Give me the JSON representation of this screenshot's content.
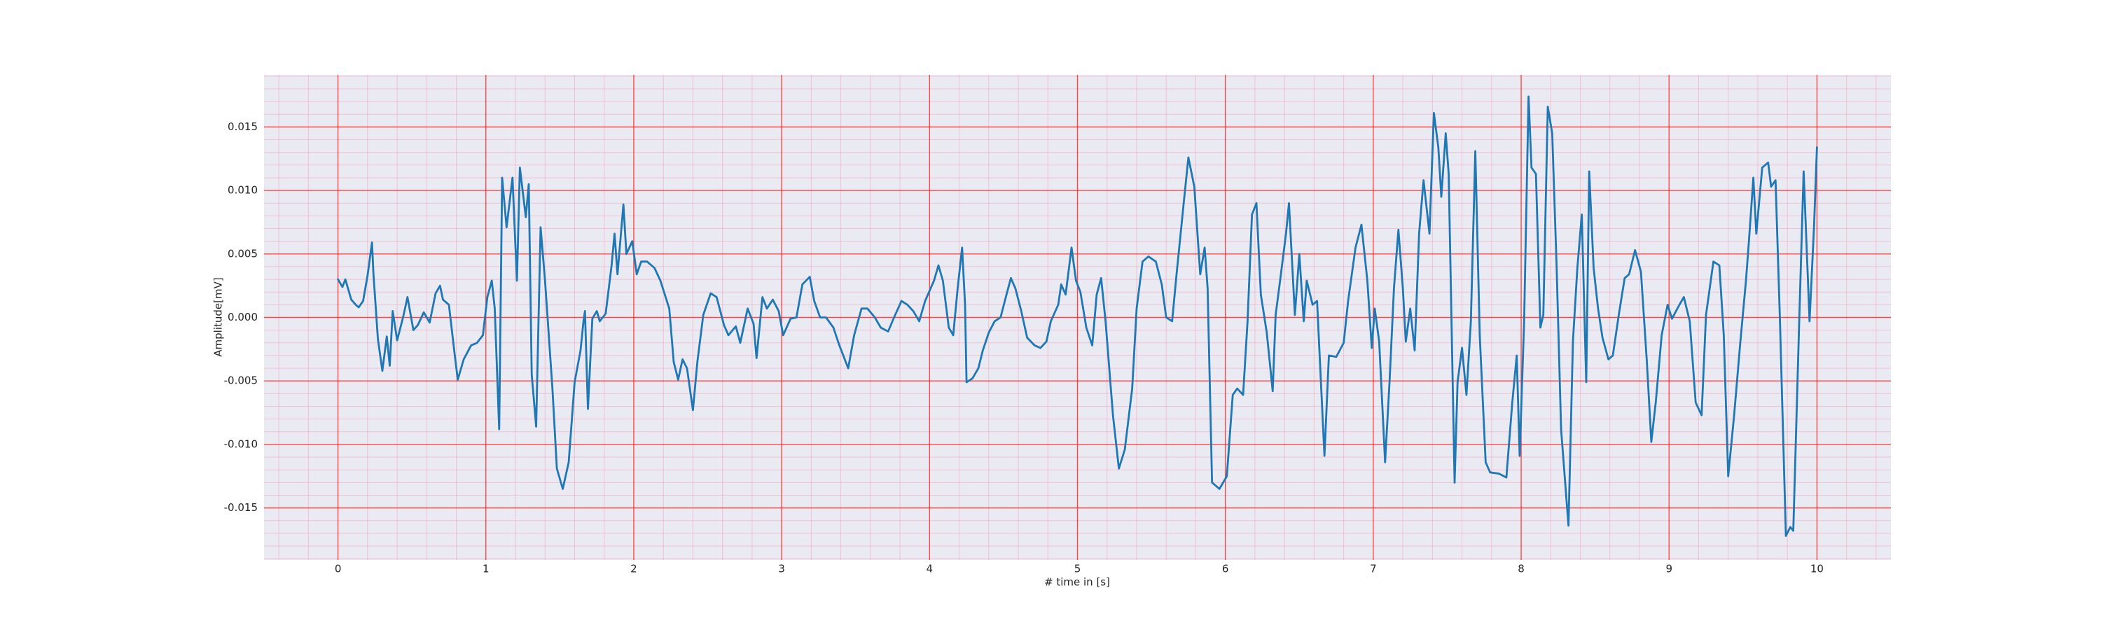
{
  "chart_data": {
    "type": "line",
    "xlabel": "# time in [s]",
    "ylabel": "Amplitude[mV]",
    "color": "#1f77b4",
    "grid": true,
    "minor_grid": true,
    "grid_color": "#ff2020",
    "minor_grid_color": "#f4a0b8",
    "background": "#eaeaf2",
    "xlim": [
      -0.5,
      10.5
    ],
    "ylim": [
      -0.0191,
      0.0191
    ],
    "xticks": [
      0,
      1,
      2,
      3,
      4,
      5,
      6,
      7,
      8,
      9,
      10
    ],
    "yticks": [
      {
        "value": -0.015,
        "label": "-0.015"
      },
      {
        "value": -0.01,
        "label": "-0.010"
      },
      {
        "value": -0.005,
        "label": "-0.005"
      },
      {
        "value": 0,
        "label": "0.000"
      },
      {
        "value": 0.005,
        "label": "0.005"
      },
      {
        "value": 0.01,
        "label": "0.010"
      },
      {
        "value": 0.015,
        "label": "0.015"
      }
    ],
    "x": [
      0,
      0.03,
      0.05,
      0.09,
      0.12,
      0.14,
      0.17,
      0.2,
      0.23,
      0.24,
      0.27,
      0.3,
      0.33,
      0.35,
      0.37,
      0.4,
      0.44,
      0.47,
      0.51,
      0.54,
      0.58,
      0.62,
      0.66,
      0.69,
      0.71,
      0.75,
      0.79,
      0.81,
      0.85,
      0.9,
      0.94,
      0.98,
      1.01,
      1.04,
      1.06,
      1.09,
      1.11,
      1.14,
      1.18,
      1.21,
      1.23,
      1.27,
      1.29,
      1.31,
      1.34,
      1.37,
      1.4,
      1.45,
      1.48,
      1.52,
      1.56,
      1.6,
      1.64,
      1.66,
      1.67,
      1.69,
      1.72,
      1.75,
      1.77,
      1.81,
      1.85,
      1.87,
      1.89,
      1.93,
      1.95,
      1.99,
      2.02,
      2.05,
      2.09,
      2.14,
      2.18,
      2.24,
      2.27,
      2.3,
      2.33,
      2.36,
      2.4,
      2.43,
      2.47,
      2.52,
      2.56,
      2.61,
      2.64,
      2.69,
      2.72,
      2.77,
      2.81,
      2.83,
      2.87,
      2.9,
      2.94,
      2.98,
      3.01,
      3.06,
      3.1,
      3.14,
      3.19,
      3.22,
      3.26,
      3.3,
      3.35,
      3.39,
      3.45,
      3.49,
      3.54,
      3.58,
      3.63,
      3.67,
      3.72,
      3.76,
      3.81,
      3.85,
      3.89,
      3.93,
      3.97,
      4.03,
      4.06,
      4.09,
      4.13,
      4.16,
      4.19,
      4.22,
      4.24,
      4.25,
      4.29,
      4.33,
      4.36,
      4.4,
      4.44,
      4.48,
      4.52,
      4.55,
      4.58,
      4.62,
      4.66,
      4.71,
      4.75,
      4.79,
      4.82,
      4.87,
      4.89,
      4.92,
      4.96,
      4.99,
      5.02,
      5.06,
      5.1,
      5.13,
      5.16,
      5.19,
      5.24,
      5.28,
      5.32,
      5.37,
      5.4,
      5.44,
      5.48,
      5.53,
      5.57,
      5.6,
      5.64,
      5.67,
      5.72,
      5.75,
      5.79,
      5.83,
      5.86,
      5.88,
      5.91,
      5.96,
      6.01,
      6.05,
      6.08,
      6.12,
      6.15,
      6.18,
      6.21,
      6.24,
      6.28,
      6.32,
      6.34,
      6.37,
      6.41,
      6.43,
      6.47,
      6.5,
      6.53,
      6.55,
      6.59,
      6.62,
      6.67,
      6.7,
      6.75,
      6.8,
      6.83,
      6.88,
      6.92,
      6.96,
      6.99,
      7.01,
      7.04,
      7.08,
      7.11,
      7.14,
      7.17,
      7.2,
      7.22,
      7.25,
      7.28,
      7.31,
      7.34,
      7.38,
      7.41,
      7.44,
      7.46,
      7.49,
      7.51,
      7.55,
      7.57,
      7.6,
      7.63,
      7.66,
      7.69,
      7.72,
      7.76,
      7.79,
      7.85,
      7.9,
      7.94,
      7.97,
      7.99,
      8.02,
      8.05,
      8.07,
      8.1,
      8.13,
      8.15,
      8.18,
      8.21,
      8.24,
      8.27,
      8.32,
      8.35,
      8.38,
      8.41,
      8.44,
      8.46,
      8.49,
      8.52,
      8.55,
      8.59,
      8.62,
      8.66,
      8.7,
      8.73,
      8.77,
      8.81,
      8.85,
      8.88,
      8.91,
      8.95,
      8.99,
      9.02,
      9.07,
      9.1,
      9.14,
      9.18,
      9.22,
      9.25,
      9.3,
      9.34,
      9.37,
      9.4,
      9.44,
      9.48,
      9.52,
      9.54,
      9.57,
      9.59,
      9.63,
      9.67,
      9.69,
      9.72,
      9.75,
      9.79,
      9.82,
      9.84,
      9.88,
      9.91,
      9.95,
      9.98,
      10
    ],
    "values": [
      0.003,
      0.0024,
      0.003,
      0.0014,
      0.001,
      0.0008,
      0.0013,
      0.0033,
      0.0059,
      0.0034,
      -0.0017,
      -0.0042,
      -0.0015,
      -0.0038,
      0.0005,
      -0.0018,
      0,
      0.0016,
      -0.001,
      -0.0006,
      0.0004,
      -0.0004,
      0.0019,
      0.0025,
      0.0014,
      0.001,
      -0.003,
      -0.0049,
      -0.0033,
      -0.0022,
      -0.002,
      -0.0014,
      0.0016,
      0.0029,
      0.0007,
      -0.0088,
      0.011,
      0.0071,
      0.011,
      0.0029,
      0.0118,
      0.0079,
      0.0105,
      -0.0045,
      -0.0086,
      0.0071,
      0.0029,
      -0.0056,
      -0.0119,
      -0.0135,
      -0.0114,
      -0.0051,
      -0.0026,
      -0.0003,
      0.0005,
      -0.0072,
      -0.0001,
      0.0005,
      -0.0003,
      0.0003,
      0.0041,
      0.0066,
      0.0034,
      0.0089,
      0.005,
      0.006,
      0.0034,
      0.0044,
      0.0044,
      0.0039,
      0.0029,
      0.0007,
      -0.0035,
      -0.0049,
      -0.0033,
      -0.004,
      -0.0073,
      -0.0035,
      0.0002,
      0.0019,
      0.0016,
      -0.0006,
      -0.0014,
      -0.0007,
      -0.002,
      0.0007,
      -0.0005,
      -0.0032,
      0.0016,
      0.0007,
      0.0014,
      0.0005,
      -0.0014,
      -0.0001,
      0,
      0.0026,
      0.0032,
      0.0013,
      0,
      0,
      -0.0008,
      -0.0022,
      -0.004,
      -0.0014,
      0.0007,
      0.0007,
      0,
      -0.0008,
      -0.0011,
      0,
      0.0013,
      0.001,
      0.0005,
      -0.0003,
      0.0013,
      0.0029,
      0.0041,
      0.0029,
      -0.0008,
      -0.0014,
      0.0023,
      0.0055,
      0.001,
      -0.0051,
      -0.0048,
      -0.004,
      -0.0026,
      -0.0012,
      -0.0003,
      0,
      0.0018,
      0.0031,
      0.0023,
      0.0005,
      -0.0016,
      -0.0022,
      -0.0024,
      -0.0019,
      -0.0003,
      0.001,
      0.0026,
      0.0018,
      0.0055,
      0.0029,
      0.002,
      -0.0008,
      -0.0022,
      0.0018,
      0.0031,
      -0.0003,
      -0.0077,
      -0.0119,
      -0.0104,
      -0.0056,
      0.0007,
      0.0044,
      0.0048,
      0.0044,
      0.0026,
      0,
      -0.0003,
      0.0034,
      0.0092,
      0.0126,
      0.0103,
      0.0034,
      0.0055,
      0.0023,
      -0.013,
      -0.0135,
      -0.0125,
      -0.0061,
      -0.0056,
      -0.0061,
      -0.0003,
      0.0081,
      0.009,
      0.0018,
      -0.0012,
      -0.0058,
      0.0002,
      0.0029,
      0.0066,
      0.009,
      0.0002,
      0.005,
      -0.0003,
      0.0029,
      0.001,
      0.0013,
      -0.0109,
      -0.003,
      -0.0031,
      -0.002,
      0.0013,
      0.0055,
      0.0073,
      0.0029,
      -0.0024,
      0.0007,
      -0.0019,
      -0.0114,
      -0.0051,
      0.0023,
      0.0069,
      0.0023,
      -0.0019,
      0.0007,
      -0.0026,
      0.0066,
      0.0108,
      0.0066,
      0.0161,
      0.0134,
      0.0095,
      0.0145,
      0.0113,
      -0.013,
      -0.0051,
      -0.0024,
      -0.0061,
      -0.0003,
      0.0131,
      -0.0014,
      -0.0114,
      -0.0122,
      -0.0123,
      -0.0126,
      -0.0067,
      -0.003,
      -0.0109,
      -0.0003,
      0.0174,
      0.0118,
      0.0113,
      -0.0008,
      0.0002,
      0.0166,
      0.0145,
      0.0039,
      -0.0088,
      -0.0164,
      -0.0019,
      0.0039,
      0.0081,
      -0.0051,
      0.0115,
      0.0039,
      0.0007,
      -0.0016,
      -0.0033,
      -0.003,
      0.0002,
      0.0031,
      0.0034,
      0.0053,
      0.0036,
      -0.0035,
      -0.0098,
      -0.0067,
      -0.0014,
      0.001,
      -0.0001,
      0.001,
      0.0016,
      -0.0003,
      -0.0067,
      -0.0077,
      0.0002,
      0.0044,
      0.0041,
      -0.0014,
      -0.0125,
      -0.0077,
      -0.0022,
      0.0029,
      0.006,
      0.011,
      0.0066,
      0.0118,
      0.0122,
      0.0103,
      0.0108,
      -0.0003,
      -0.0172,
      -0.0165,
      -0.0168,
      -0.0003,
      0.0115,
      -0.0003,
      0.0071,
      0.0134
    ]
  }
}
